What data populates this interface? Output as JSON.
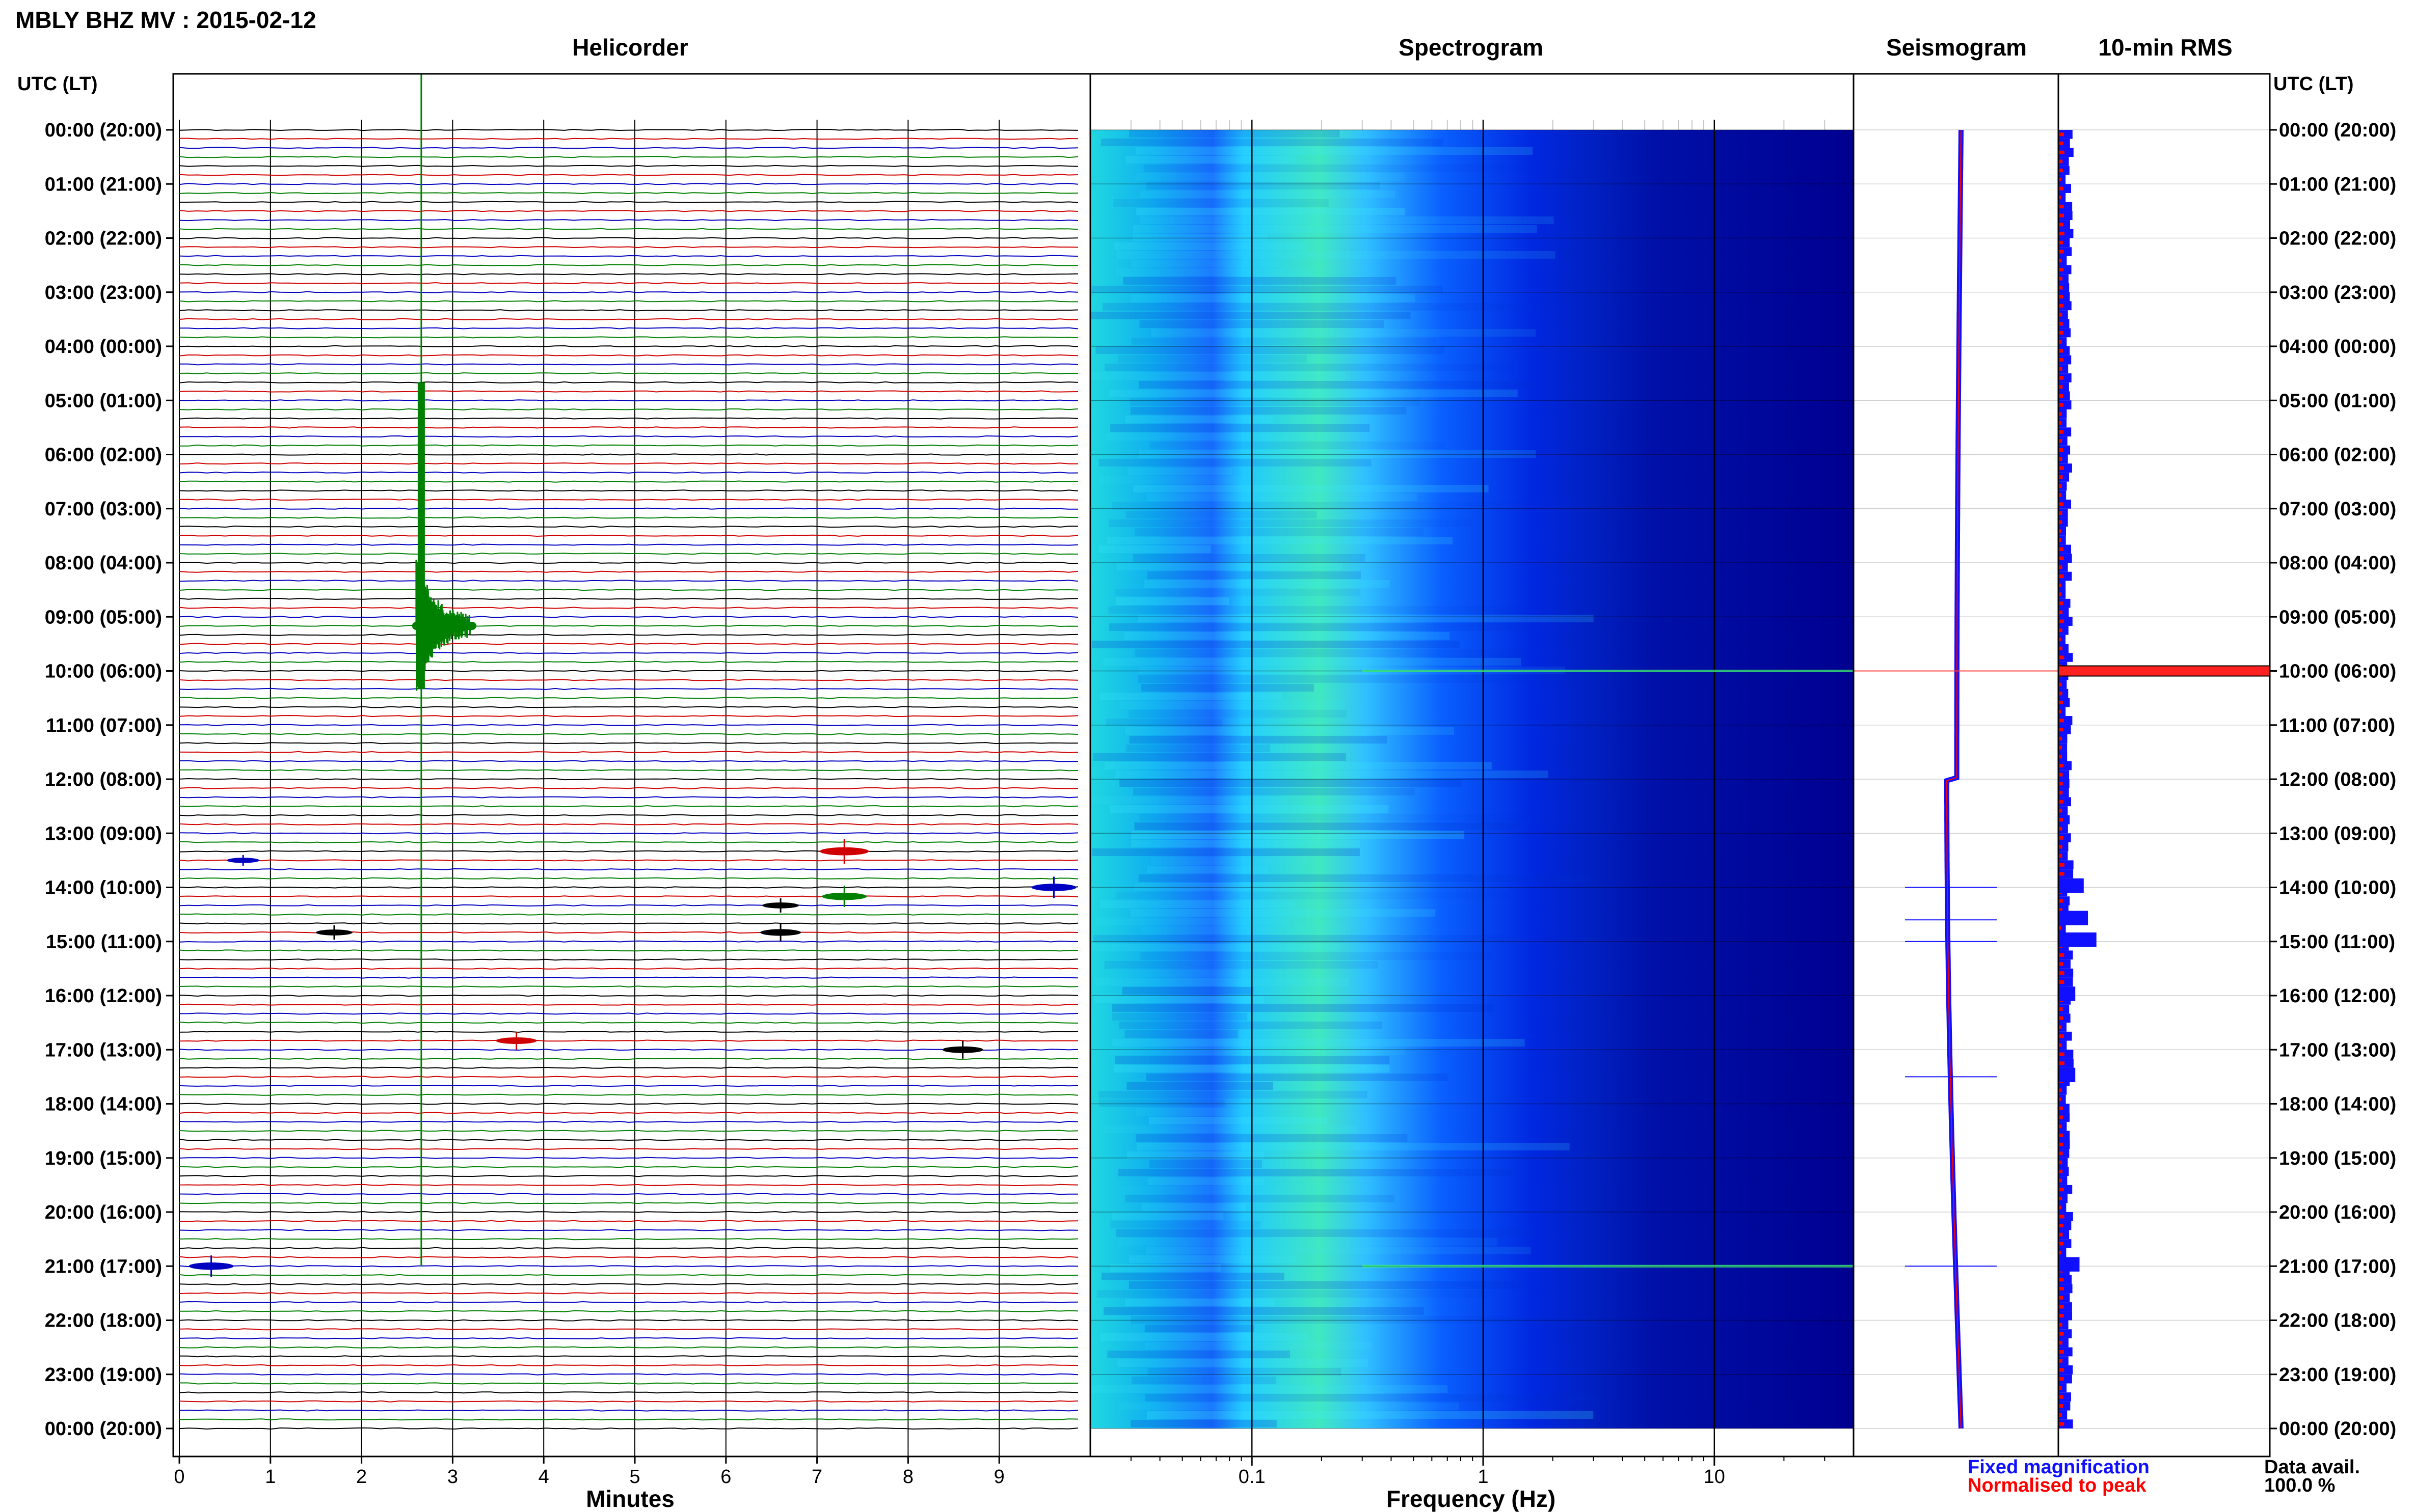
{
  "header": {
    "title": "MBLY BHZ MV : 2015-02-12"
  },
  "panels": {
    "helicorder": "Helicorder",
    "spectrogram": "Spectrogram",
    "seismogram": "Seismogram",
    "rms": "10-min RMS"
  },
  "axes": {
    "left_header": "UTC (LT)",
    "right_header": "UTC (LT)",
    "helicorder_xlabel": "Minutes",
    "spectrogram_xlabel": "Frequency (Hz)"
  },
  "legend": {
    "fixed": "Fixed magnification",
    "normalised": "Normalised to peak",
    "fixed_color": "#1010ff",
    "normalised_color": "#ff0000"
  },
  "availability": {
    "label": "Data avail.",
    "value": "100.0 %"
  },
  "chart_data": [
    {
      "type": "line",
      "name": "helicorder",
      "title": "Helicorder",
      "xlabel": "Minutes",
      "ylabel": "UTC (LT)",
      "x_ticks": [
        "0",
        "1",
        "2",
        "3",
        "4",
        "5",
        "6",
        "7",
        "8",
        "9"
      ],
      "xlim": [
        0,
        10
      ],
      "y_ticks": [
        "00:00 (20:00)",
        "01:00 (21:00)",
        "02:00 (22:00)",
        "03:00 (23:00)",
        "04:00 (00:00)",
        "05:00 (01:00)",
        "06:00 (02:00)",
        "07:00 (03:00)",
        "08:00 (04:00)",
        "09:00 (05:00)",
        "10:00 (06:00)",
        "11:00 (07:00)",
        "12:00 (08:00)",
        "13:00 (09:00)",
        "14:00 (10:00)",
        "15:00 (11:00)",
        "16:00 (12:00)",
        "17:00 (13:00)",
        "18:00 (14:00)",
        "19:00 (15:00)",
        "20:00 (16:00)",
        "21:00 (17:00)",
        "22:00 (18:00)",
        "23:00 (19:00)",
        "00:00 (20:00)"
      ],
      "trace_colors": [
        "#000000",
        "#d00000",
        "#0000c0",
        "#008000"
      ],
      "traces_per_hour": 6,
      "events": [
        {
          "row": 55,
          "minute": 2.6,
          "amplitude": 1.0,
          "color": "#008000",
          "note": ""
        },
        {
          "row": 80,
          "minute": 7.3,
          "amplitude": 0.35,
          "color": "#d00000"
        },
        {
          "row": 81,
          "minute": 0.7,
          "amplitude": 0.15,
          "color": "#0000c0"
        },
        {
          "row": 84,
          "minute": 9.6,
          "amplitude": 0.3,
          "color": "#0000c0"
        },
        {
          "row": 85,
          "minute": 7.3,
          "amplitude": 0.3,
          "color": "#008000"
        },
        {
          "row": 86,
          "minute": 6.6,
          "amplitude": 0.2,
          "color": "#000000"
        },
        {
          "row": 89,
          "minute": 1.7,
          "amplitude": 0.2,
          "color": "#000000"
        },
        {
          "row": 89,
          "minute": 6.6,
          "amplitude": 0.25,
          "color": "#000000"
        },
        {
          "row": 101,
          "minute": 3.7,
          "amplitude": 0.25,
          "color": "#d00000"
        },
        {
          "row": 102,
          "minute": 8.6,
          "amplitude": 0.25,
          "color": "#000000"
        },
        {
          "row": 126,
          "minute": 0.35,
          "amplitude": 0.3,
          "color": "#0000c0"
        }
      ]
    },
    {
      "type": "heatmap",
      "name": "spectrogram",
      "title": "Spectrogram",
      "xlabel": "Frequency (Hz)",
      "x_scale": "log",
      "xlim": [
        0.02,
        40
      ],
      "x_ticks": [
        "0.1",
        "1",
        "10"
      ],
      "colormap": [
        "#000080",
        "#0000c8",
        "#0040ff",
        "#00a0ff",
        "#20e0d0",
        "#80ff80",
        "#ffff00"
      ],
      "note_hours_of_energy_lines": [
        10,
        21
      ]
    },
    {
      "type": "line",
      "name": "seismogram",
      "title": "Seismogram",
      "series": [
        {
          "name": "Fixed magnification",
          "color": "#1010ff"
        },
        {
          "name": "Normalised to peak",
          "color": "#ff0000"
        }
      ],
      "spike_hours": [
        10.0,
        14.0,
        14.6,
        15.0,
        17.5,
        21.0
      ]
    },
    {
      "type": "bar",
      "name": "rms",
      "title": "10-min RMS",
      "series": [
        {
          "name": "Fixed magnification",
          "color": "#1010ff"
        },
        {
          "name": "Normalised to peak",
          "color": "#ff0000"
        }
      ],
      "peak_hour": 10.0,
      "bursts": [
        {
          "hour": 14.0,
          "value": 0.12
        },
        {
          "hour": 14.6,
          "value": 0.14
        },
        {
          "hour": 15.0,
          "value": 0.18
        },
        {
          "hour": 16.0,
          "value": 0.08
        },
        {
          "hour": 17.5,
          "value": 0.08
        },
        {
          "hour": 21.0,
          "value": 0.1
        }
      ]
    }
  ]
}
